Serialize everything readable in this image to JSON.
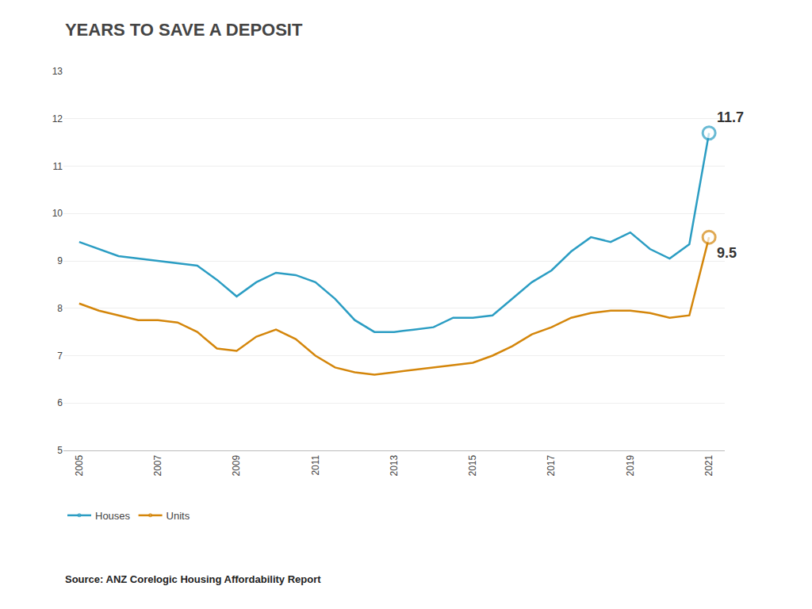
{
  "chart_data": {
    "type": "line",
    "title": "YEARS TO SAVE A DEPOSIT",
    "source": "Source: ANZ Corelogic Housing Affordability Report",
    "x": [
      2005,
      2005.5,
      2006,
      2006.5,
      2007,
      2007.5,
      2008,
      2008.5,
      2009,
      2009.5,
      2010,
      2010.5,
      2011,
      2011.5,
      2012,
      2012.5,
      2013,
      2013.5,
      2014,
      2014.5,
      2015,
      2015.5,
      2016,
      2016.5,
      2017,
      2017.5,
      2018,
      2018.5,
      2019,
      2019.5,
      2020,
      2020.5,
      2021
    ],
    "series": [
      {
        "name": "Houses",
        "color": "#2B9DC3",
        "values": [
          9.4,
          9.25,
          9.1,
          9.05,
          9.0,
          8.95,
          8.9,
          8.6,
          8.25,
          8.55,
          8.75,
          8.7,
          8.55,
          8.2,
          7.75,
          7.5,
          7.5,
          7.55,
          7.6,
          7.8,
          7.8,
          7.85,
          8.2,
          8.55,
          8.8,
          9.2,
          9.5,
          9.4,
          9.6,
          9.25,
          9.05,
          9.35,
          11.7
        ]
      },
      {
        "name": "Units",
        "color": "#D4860B",
        "values": [
          8.1,
          7.95,
          7.85,
          7.75,
          7.75,
          7.7,
          7.5,
          7.15,
          7.1,
          7.4,
          7.55,
          7.35,
          7.0,
          6.75,
          6.65,
          6.6,
          6.65,
          6.7,
          6.75,
          6.8,
          6.85,
          7.0,
          7.2,
          7.45,
          7.6,
          7.8,
          7.9,
          7.95,
          7.95,
          7.9,
          7.8,
          7.85,
          9.5
        ]
      }
    ],
    "annotations": [
      {
        "text": "11.7",
        "x": 2021,
        "y": 11.7
      },
      {
        "text": "9.5",
        "x": 2021,
        "y": 9.5
      }
    ],
    "xlim": [
      2004.6,
      2021.4
    ],
    "xticks": [
      2005,
      2007,
      2009,
      2011,
      2013,
      2015,
      2017,
      2019,
      2021
    ],
    "ylim": [
      5,
      13
    ],
    "yticks": [
      5,
      6,
      7,
      8,
      9,
      10,
      11,
      12,
      13
    ],
    "grid": "y",
    "legend": "bottom left"
  }
}
